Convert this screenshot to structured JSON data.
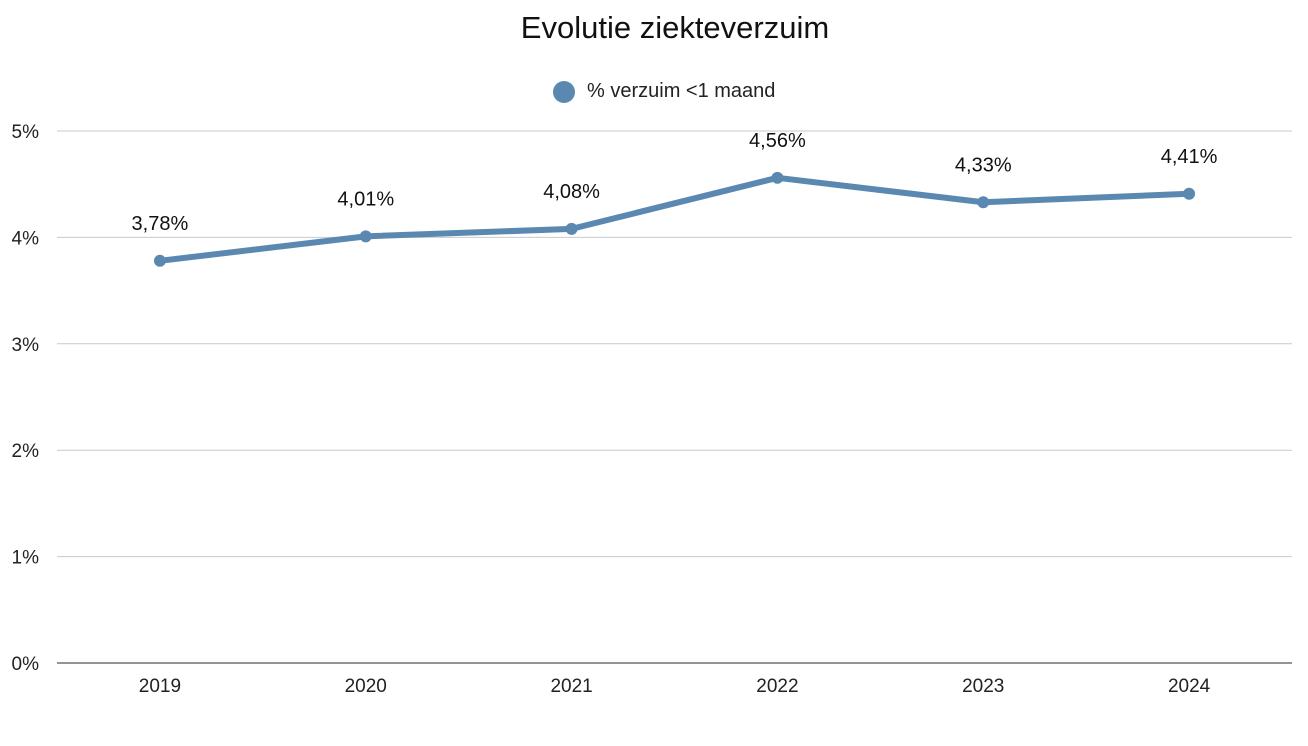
{
  "chart_data": {
    "type": "line",
    "title": "Evolutie ziekteverzuim",
    "categories": [
      "2019",
      "2020",
      "2021",
      "2022",
      "2023",
      "2024"
    ],
    "series": [
      {
        "name": "% verzuim <1 maand",
        "values": [
          3.78,
          4.01,
          4.08,
          4.56,
          4.33,
          4.41
        ],
        "labels": [
          "3,78%",
          "4,01%",
          "4,08%",
          "4,56%",
          "4,33%",
          "4,41%"
        ],
        "color": "#5b88b1"
      }
    ],
    "y_ticks": [
      {
        "value": 0,
        "label": "0%"
      },
      {
        "value": 1,
        "label": "1%"
      },
      {
        "value": 2,
        "label": "2%"
      },
      {
        "value": 3,
        "label": "3%"
      },
      {
        "value": 4,
        "label": "4%"
      },
      {
        "value": 5,
        "label": "5%"
      }
    ],
    "ylim": [
      0,
      5
    ],
    "xlabel": "",
    "ylabel": "",
    "grid": true,
    "legend_position": "top-center"
  }
}
